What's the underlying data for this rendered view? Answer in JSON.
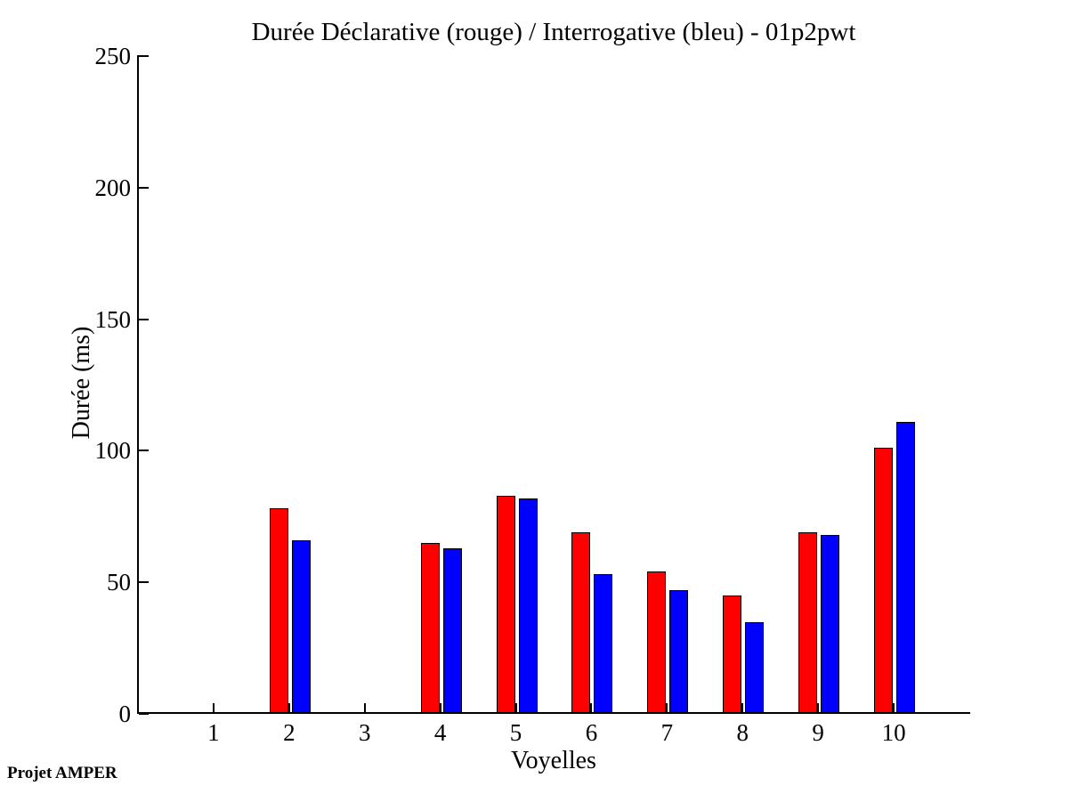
{
  "chart": {
    "title": "Durée Déclarative (rouge) / Interrogative (bleu) - 01p2pwt",
    "xlabel": "Voyelles",
    "ylabel": "Durée (ms)"
  },
  "footer": {
    "credit": "Projet AMPER"
  },
  "chart_data": {
    "type": "bar",
    "title": "Durée Déclarative (rouge) / Interrogative (bleu) - 01p2pwt",
    "xlabel": "Voyelles",
    "ylabel": "Durée (ms)",
    "categories": [
      1,
      2,
      3,
      4,
      5,
      6,
      7,
      8,
      9,
      10
    ],
    "series": [
      {
        "name": "Déclarative",
        "color": "#ff0000",
        "values": [
          0,
          78,
          0,
          65,
          83,
          69,
          54,
          45,
          69,
          101
        ]
      },
      {
        "name": "Interrogative",
        "color": "#0000ff",
        "values": [
          0,
          66,
          0,
          63,
          82,
          53,
          47,
          35,
          68,
          111
        ]
      }
    ],
    "ylim": [
      0,
      250
    ],
    "yticks": [
      0,
      50,
      100,
      150,
      200,
      250
    ],
    "xlim": [
      0,
      11
    ],
    "grid": false,
    "legend_position": "none",
    "axis_box": "left-and-bottom-only"
  }
}
